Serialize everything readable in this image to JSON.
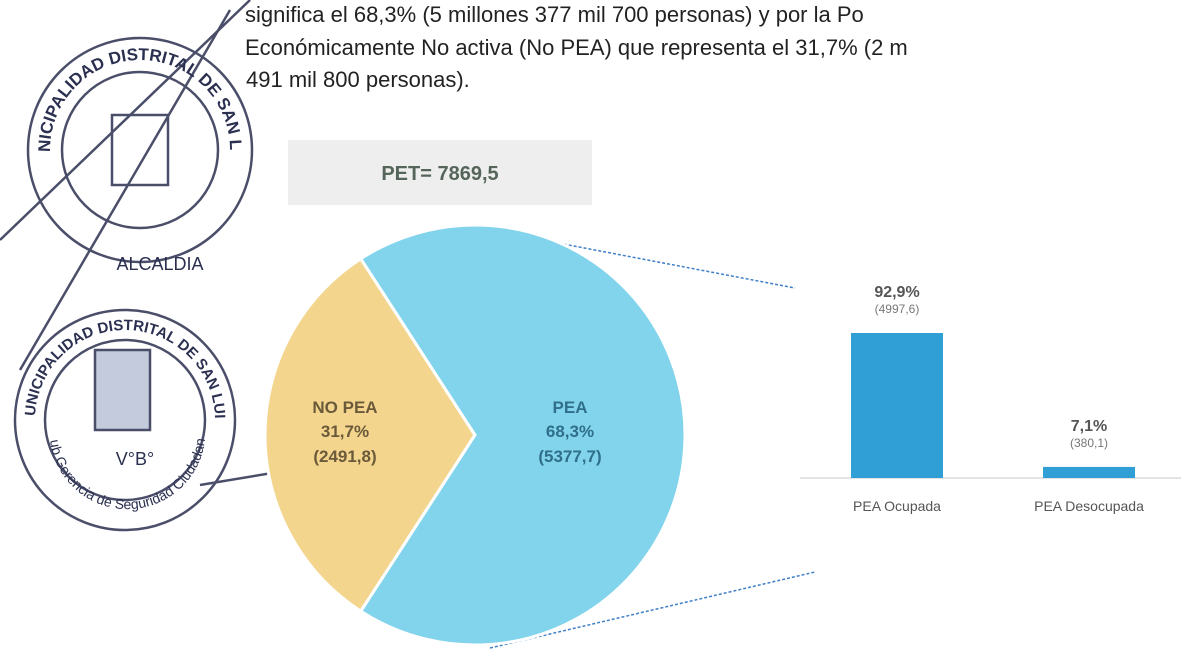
{
  "text": [
    "significa el 68,3% (5 millones 377 mil 700 personas) y por la Po",
    "Económicamente No activa (No PEA) que representa el 31,7% (2 m",
    "491 mil 800 personas)."
  ],
  "stamps": [
    {
      "ring": "MUNICIPALIDAD DISTRITAL DE SAN LUIS",
      "bottom": "ALCALDIA"
    },
    {
      "ring": "MUNICIPALIDAD DISTRITAL DE SAN LUIS",
      "center": "V°B°",
      "bottom": "Sub Gerencia de Seguridad Ciudadana"
    }
  ],
  "chart_data": [
    {
      "type": "pie",
      "title": "PET= 7869,5",
      "categories": [
        "NO PEA",
        "PEA"
      ],
      "values": [
        31.7,
        68.3
      ],
      "value_labels": [
        "31,7%",
        "68,3%"
      ],
      "counts": [
        2491.8,
        5377.7
      ],
      "count_labels": [
        "(2491,8)",
        "(5377,7)"
      ],
      "colors": [
        "#f3d58e",
        "#82d4ec"
      ]
    },
    {
      "type": "bar",
      "categories": [
        "PEA Ocupada",
        "PEA Desocupada"
      ],
      "values": [
        92.9,
        7.1
      ],
      "value_labels": [
        "92,9%",
        "7,1%"
      ],
      "counts": [
        4997.6,
        380.1
      ],
      "count_labels": [
        "(4997,6)",
        "(380,1)"
      ],
      "color": "#2f9fd6"
    }
  ]
}
